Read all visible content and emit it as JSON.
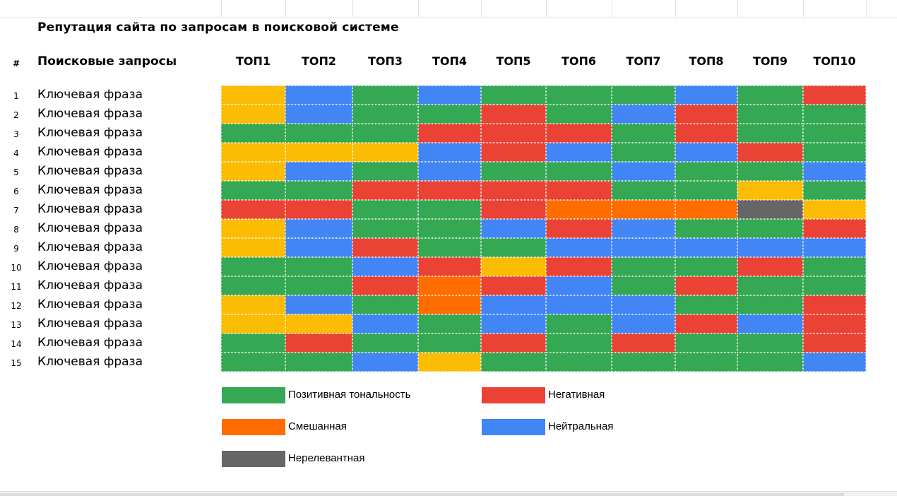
{
  "title": "Репутация сайта по запросам в поисковой системе",
  "header": {
    "hash": "#",
    "queries": "Поисковые запросы"
  },
  "columns": [
    "ТОП1",
    "ТОП2",
    "ТОП3",
    "ТОП4",
    "ТОП5",
    "ТОП6",
    "ТОП7",
    "ТОП8",
    "ТОП9",
    "ТОП10"
  ],
  "colors": {
    "P": "#34a853",
    "N": "#ea4335",
    "M": "#ff6d01",
    "U": "#4285f4",
    "I": "#666666",
    "Y": "#fbbc04"
  },
  "rows": [
    {
      "num": "1",
      "label": "Ключевая фраза",
      "cells": [
        "Y",
        "U",
        "P",
        "U",
        "P",
        "P",
        "P",
        "U",
        "P",
        "N"
      ]
    },
    {
      "num": "2",
      "label": "Ключевая фраза",
      "cells": [
        "Y",
        "U",
        "P",
        "P",
        "N",
        "P",
        "U",
        "N",
        "P",
        "P"
      ]
    },
    {
      "num": "3",
      "label": "Ключевая фраза",
      "cells": [
        "P",
        "P",
        "P",
        "N",
        "N",
        "N",
        "P",
        "N",
        "P",
        "P"
      ]
    },
    {
      "num": "4",
      "label": "Ключевая фраза",
      "cells": [
        "Y",
        "Y",
        "Y",
        "U",
        "N",
        "U",
        "P",
        "U",
        "N",
        "P"
      ]
    },
    {
      "num": "5",
      "label": "Ключевая фраза",
      "cells": [
        "Y",
        "U",
        "P",
        "U",
        "P",
        "P",
        "U",
        "P",
        "P",
        "U"
      ]
    },
    {
      "num": "6",
      "label": "Ключевая фраза",
      "cells": [
        "P",
        "P",
        "N",
        "N",
        "N",
        "N",
        "P",
        "P",
        "Y",
        "P"
      ]
    },
    {
      "num": "7",
      "label": "Ключевая фраза",
      "cells": [
        "N",
        "N",
        "P",
        "P",
        "N",
        "M",
        "M",
        "M",
        "I",
        "Y"
      ]
    },
    {
      "num": "8",
      "label": "Ключевая фраза",
      "cells": [
        "Y",
        "U",
        "P",
        "P",
        "U",
        "N",
        "U",
        "P",
        "P",
        "N"
      ]
    },
    {
      "num": "9",
      "label": "Ключевая фраза",
      "cells": [
        "Y",
        "U",
        "N",
        "P",
        "P",
        "U",
        "U",
        "U",
        "U",
        "U"
      ]
    },
    {
      "num": "10",
      "label": "Ключевая фраза",
      "cells": [
        "P",
        "P",
        "U",
        "N",
        "Y",
        "N",
        "P",
        "P",
        "N",
        "P"
      ]
    },
    {
      "num": "11",
      "label": "Ключевая фраза",
      "cells": [
        "P",
        "P",
        "N",
        "M",
        "N",
        "U",
        "P",
        "N",
        "P",
        "P"
      ]
    },
    {
      "num": "12",
      "label": "Ключевая фраза",
      "cells": [
        "Y",
        "U",
        "P",
        "M",
        "U",
        "U",
        "U",
        "P",
        "P",
        "N"
      ]
    },
    {
      "num": "13",
      "label": "Ключевая фраза",
      "cells": [
        "Y",
        "Y",
        "U",
        "P",
        "U",
        "P",
        "U",
        "N",
        "U",
        "N"
      ]
    },
    {
      "num": "14",
      "label": "Ключевая фраза",
      "cells": [
        "P",
        "N",
        "P",
        "P",
        "N",
        "P",
        "N",
        "P",
        "P",
        "N"
      ]
    },
    {
      "num": "15",
      "label": "Ключевая фраза",
      "cells": [
        "P",
        "P",
        "U",
        "Y",
        "P",
        "P",
        "P",
        "P",
        "P",
        "U"
      ]
    }
  ],
  "legend": [
    {
      "key": "P",
      "label": "Позитивная тональность"
    },
    {
      "key": "N",
      "label": "Негативная"
    },
    {
      "key": "M",
      "label": "Смешанная"
    },
    {
      "key": "U",
      "label": "Нейтральная"
    },
    {
      "key": "I",
      "label": "Нерелевантная"
    }
  ]
}
